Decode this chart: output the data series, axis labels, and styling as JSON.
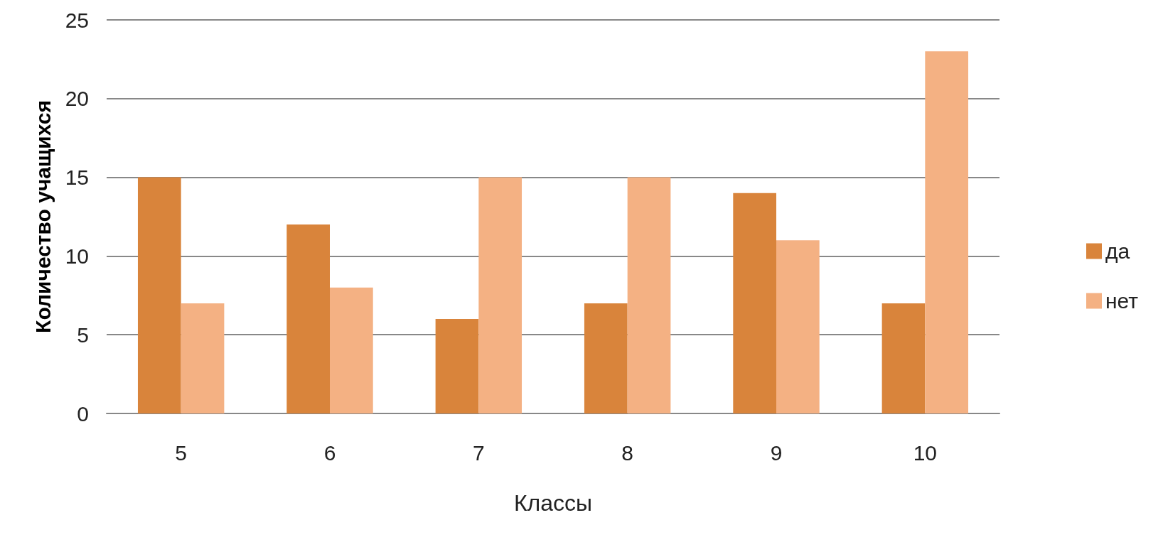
{
  "chart_data": {
    "type": "bar",
    "xlabel": "Классы",
    "ylabel": "Количество учащихся",
    "categories": [
      "5",
      "6",
      "7",
      "8",
      "9",
      "10"
    ],
    "series": [
      {
        "name": "да",
        "color": "#d9843b",
        "values": [
          15,
          12,
          6,
          7,
          14,
          7
        ]
      },
      {
        "name": "нет",
        "color": "#f4b183",
        "values": [
          7,
          8,
          15,
          15,
          11,
          23
        ]
      }
    ],
    "ylim": [
      0,
      25
    ],
    "yticks": [
      0,
      5,
      10,
      15,
      20,
      25
    ],
    "grid": "y",
    "legend": "right"
  }
}
